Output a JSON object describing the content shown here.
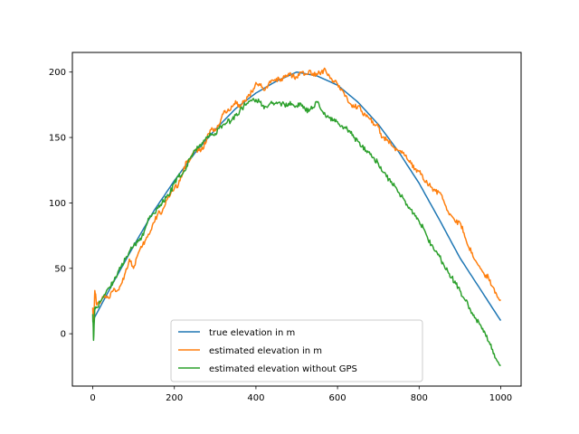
{
  "chart_data": {
    "type": "line",
    "title": "",
    "xlabel": "",
    "ylabel": "",
    "xlim": [
      -50,
      1050
    ],
    "ylim": [
      -40,
      215
    ],
    "x_ticks": [
      0,
      200,
      400,
      600,
      800,
      1000
    ],
    "y_ticks": [
      0,
      50,
      100,
      150,
      200
    ],
    "grid": false,
    "legend_position": "lower center",
    "series": [
      {
        "name": "true elevation in m",
        "color": "#1f77b4",
        "kind": "smooth",
        "x": [
          0,
          50,
          100,
          150,
          200,
          250,
          300,
          350,
          400,
          450,
          500,
          550,
          600,
          650,
          700,
          750,
          800,
          850,
          900,
          950,
          1000
        ],
        "y": [
          10,
          39,
          67,
          94,
          117,
          138,
          156,
          172,
          184,
          193,
          200,
          197,
          190,
          177,
          160,
          139,
          115,
          87,
          58,
          34,
          10
        ]
      },
      {
        "name": "estimated elevation in m",
        "color": "#ff7f0e",
        "kind": "noisy",
        "x": [
          0,
          2,
          5,
          10,
          20,
          30,
          40,
          50,
          60,
          70,
          80,
          90,
          100,
          110,
          120,
          130,
          140,
          150,
          160,
          170,
          180,
          190,
          200,
          210,
          220,
          230,
          240,
          250,
          260,
          270,
          280,
          290,
          300,
          310,
          320,
          330,
          340,
          350,
          360,
          370,
          380,
          390,
          400,
          410,
          420,
          430,
          440,
          450,
          460,
          470,
          480,
          490,
          500,
          510,
          520,
          530,
          540,
          550,
          560,
          570,
          580,
          590,
          600,
          610,
          620,
          630,
          640,
          650,
          660,
          670,
          680,
          690,
          700,
          710,
          720,
          730,
          740,
          750,
          760,
          770,
          780,
          790,
          800,
          810,
          820,
          830,
          840,
          850,
          860,
          870,
          880,
          890,
          900,
          910,
          920,
          930,
          940,
          950,
          960,
          970,
          980,
          990,
          1000
        ],
        "y": [
          20,
          8,
          33,
          22,
          25,
          30,
          27,
          33,
          33,
          38,
          47,
          57,
          50,
          60,
          66,
          72,
          77,
          85,
          92,
          93,
          102,
          106,
          111,
          114,
          122,
          132,
          134,
          140,
          140,
          141,
          150,
          156,
          155,
          160,
          168,
          170,
          174,
          178,
          173,
          177,
          181,
          185,
          192,
          190,
          186,
          190,
          194,
          195,
          193,
          196,
          199,
          197,
          196,
          200,
          198,
          201,
          199,
          198,
          200,
          202,
          197,
          193,
          191,
          187,
          182,
          176,
          173,
          174,
          170,
          166,
          164,
          160,
          158,
          150,
          148,
          146,
          142,
          140,
          138,
          134,
          130,
          126,
          124,
          118,
          115,
          112,
          109,
          108,
          102,
          94,
          90,
          85,
          85,
          77,
          67,
          62,
          55,
          50,
          45,
          43,
          36,
          30,
          26
        ]
      },
      {
        "name": "estimated elevation without GPS",
        "color": "#2ca02c",
        "kind": "noisy",
        "x": [
          0,
          2,
          5,
          10,
          20,
          30,
          40,
          50,
          60,
          70,
          80,
          90,
          100,
          110,
          120,
          130,
          140,
          150,
          160,
          170,
          180,
          190,
          200,
          210,
          220,
          230,
          240,
          250,
          260,
          270,
          280,
          290,
          300,
          310,
          320,
          330,
          340,
          350,
          360,
          370,
          380,
          390,
          400,
          410,
          420,
          430,
          440,
          450,
          460,
          470,
          480,
          490,
          500,
          510,
          520,
          530,
          540,
          550,
          560,
          570,
          580,
          590,
          600,
          610,
          620,
          630,
          640,
          650,
          660,
          670,
          680,
          690,
          700,
          710,
          720,
          730,
          740,
          750,
          760,
          770,
          780,
          790,
          800,
          810,
          820,
          830,
          840,
          850,
          860,
          870,
          880,
          890,
          900,
          910,
          920,
          930,
          940,
          950,
          960,
          970,
          980,
          990,
          1000
        ],
        "y": [
          15,
          -5,
          20,
          20,
          25,
          30,
          35,
          40,
          45,
          52,
          57,
          63,
          67,
          70,
          74,
          82,
          90,
          92,
          96,
          100,
          104,
          108,
          115,
          120,
          122,
          128,
          135,
          140,
          143,
          146,
          150,
          152,
          153,
          157,
          160,
          162,
          163,
          167,
          170,
          174,
          176,
          178,
          179,
          177,
          172,
          174,
          176,
          177,
          176,
          175,
          176,
          175,
          174,
          176,
          172,
          170,
          173,
          177,
          171,
          167,
          165,
          163,
          162,
          159,
          157,
          155,
          150,
          147,
          143,
          140,
          137,
          134,
          130,
          124,
          120,
          116,
          113,
          108,
          104,
          99,
          95,
          90,
          86,
          81,
          74,
          68,
          63,
          59,
          53,
          48,
          43,
          38,
          33,
          27,
          22,
          16,
          11,
          7,
          2,
          -6,
          -12,
          -20,
          -24
        ]
      }
    ]
  }
}
